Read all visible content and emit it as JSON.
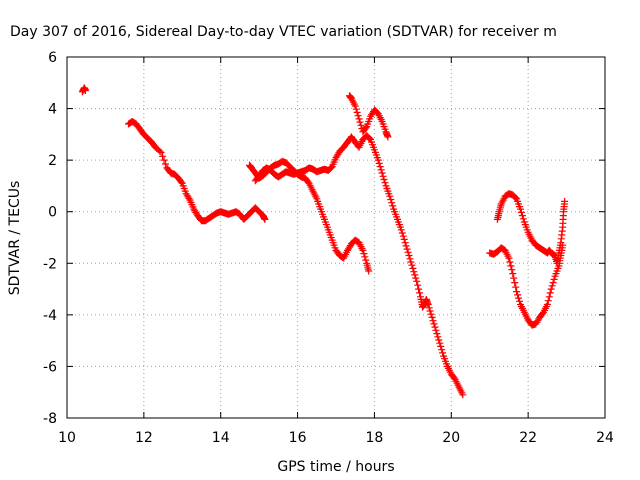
{
  "chart_data": {
    "type": "scatter",
    "title": "Day 307 of 2016, Sidereal Day-to-day VTEC variation (SDTVAR) for receiver m",
    "xlabel": "GPS time / hours",
    "ylabel": "SDTVAR / TECUs",
    "xlim": [
      10,
      24
    ],
    "ylim": [
      -8,
      6
    ],
    "xticks": [
      10,
      12,
      14,
      16,
      18,
      20,
      22,
      24
    ],
    "yticks": [
      -8,
      -6,
      -4,
      -2,
      0,
      2,
      4,
      6
    ],
    "grid": true,
    "marker": "plus",
    "color": "#ff0000",
    "series": [
      {
        "segments": [
          [
            [
              10.4,
              4.65
            ],
            [
              10.45,
              4.8
            ],
            [
              10.48,
              4.7
            ]
          ],
          [
            [
              11.6,
              3.4
            ],
            [
              11.7,
              3.5
            ],
            [
              11.8,
              3.4
            ],
            [
              11.9,
              3.2
            ],
            [
              12.0,
              3.0
            ],
            [
              12.1,
              2.85
            ],
            [
              12.2,
              2.7
            ],
            [
              12.3,
              2.5
            ],
            [
              12.45,
              2.3
            ],
            [
              12.6,
              1.7
            ],
            [
              12.7,
              1.5
            ],
            [
              12.8,
              1.45
            ],
            [
              12.9,
              1.3
            ],
            [
              13.0,
              1.1
            ],
            [
              13.1,
              0.7
            ],
            [
              13.2,
              0.45
            ],
            [
              13.3,
              0.1
            ],
            [
              13.4,
              -0.15
            ],
            [
              13.5,
              -0.35
            ],
            [
              13.6,
              -0.35
            ],
            [
              13.7,
              -0.25
            ],
            [
              13.8,
              -0.15
            ],
            [
              13.9,
              -0.05
            ],
            [
              14.0,
              0.0
            ],
            [
              14.1,
              -0.05
            ],
            [
              14.2,
              -0.1
            ],
            [
              14.3,
              -0.05
            ],
            [
              14.4,
              0.0
            ],
            [
              14.5,
              -0.1
            ],
            [
              14.6,
              -0.3
            ],
            [
              14.7,
              -0.15
            ],
            [
              14.8,
              0.0
            ],
            [
              14.9,
              0.15
            ],
            [
              15.0,
              0.0
            ],
            [
              15.1,
              -0.15
            ],
            [
              15.15,
              -0.3
            ]
          ],
          [
            [
              14.75,
              1.8
            ],
            [
              14.8,
              1.7
            ],
            [
              14.9,
              1.5
            ],
            [
              15.0,
              1.3
            ],
            [
              15.1,
              1.4
            ],
            [
              15.2,
              1.55
            ],
            [
              15.3,
              1.7
            ],
            [
              15.4,
              1.8
            ],
            [
              15.5,
              1.85
            ],
            [
              15.6,
              1.95
            ],
            [
              15.7,
              1.9
            ],
            [
              15.8,
              1.75
            ],
            [
              15.9,
              1.6
            ],
            [
              16.0,
              1.45
            ],
            [
              16.1,
              1.35
            ],
            [
              16.2,
              1.3
            ],
            [
              16.3,
              1.1
            ],
            [
              16.4,
              0.8
            ],
            [
              16.5,
              0.5
            ],
            [
              16.6,
              0.1
            ],
            [
              16.7,
              -0.3
            ],
            [
              16.8,
              -0.7
            ],
            [
              16.9,
              -1.1
            ],
            [
              17.0,
              -1.5
            ],
            [
              17.1,
              -1.7
            ],
            [
              17.2,
              -1.8
            ],
            [
              17.3,
              -1.5
            ],
            [
              17.4,
              -1.25
            ],
            [
              17.5,
              -1.1
            ],
            [
              17.6,
              -1.2
            ],
            [
              17.7,
              -1.5
            ],
            [
              17.8,
              -2.0
            ],
            [
              17.85,
              -2.3
            ]
          ],
          [
            [
              14.9,
              1.2
            ],
            [
              15.0,
              1.4
            ],
            [
              15.1,
              1.6
            ],
            [
              15.2,
              1.7
            ],
            [
              15.3,
              1.6
            ],
            [
              15.4,
              1.45
            ],
            [
              15.5,
              1.35
            ],
            [
              15.6,
              1.45
            ],
            [
              15.7,
              1.55
            ],
            [
              15.8,
              1.5
            ],
            [
              15.9,
              1.45
            ],
            [
              16.0,
              1.5
            ],
            [
              16.1,
              1.55
            ],
            [
              16.2,
              1.6
            ],
            [
              16.3,
              1.7
            ],
            [
              16.4,
              1.65
            ],
            [
              16.5,
              1.55
            ],
            [
              16.6,
              1.6
            ],
            [
              16.7,
              1.65
            ],
            [
              16.8,
              1.6
            ],
            [
              16.9,
              1.75
            ],
            [
              17.0,
              2.1
            ],
            [
              17.1,
              2.35
            ],
            [
              17.2,
              2.5
            ],
            [
              17.3,
              2.7
            ],
            [
              17.4,
              2.9
            ],
            [
              17.5,
              2.7
            ],
            [
              17.6,
              2.5
            ],
            [
              17.7,
              2.8
            ],
            [
              17.8,
              2.95
            ],
            [
              17.9,
              2.8
            ],
            [
              18.0,
              2.4
            ],
            [
              18.1,
              2.0
            ],
            [
              18.2,
              1.5
            ],
            [
              18.3,
              1.0
            ],
            [
              18.4,
              0.6
            ],
            [
              18.5,
              0.1
            ],
            [
              18.6,
              -0.3
            ],
            [
              18.7,
              -0.7
            ],
            [
              18.8,
              -1.2
            ],
            [
              18.9,
              -1.7
            ],
            [
              19.0,
              -2.2
            ],
            [
              19.1,
              -2.7
            ],
            [
              19.2,
              -3.3
            ],
            [
              19.25,
              -3.7
            ],
            [
              19.3,
              -3.6
            ],
            [
              19.35,
              -3.4
            ],
            [
              19.4,
              -3.6
            ],
            [
              19.5,
              -4.1
            ],
            [
              19.6,
              -4.6
            ],
            [
              19.7,
              -5.1
            ],
            [
              19.8,
              -5.6
            ],
            [
              19.9,
              -6.0
            ],
            [
              20.0,
              -6.3
            ],
            [
              20.1,
              -6.5
            ],
            [
              20.2,
              -6.8
            ],
            [
              20.3,
              -7.1
            ]
          ],
          [
            [
              17.35,
              4.5
            ],
            [
              17.4,
              4.4
            ],
            [
              17.5,
              4.1
            ],
            [
              17.6,
              3.6
            ],
            [
              17.7,
              3.1
            ],
            [
              17.8,
              3.3
            ],
            [
              17.9,
              3.7
            ],
            [
              18.0,
              3.95
            ],
            [
              18.1,
              3.8
            ],
            [
              18.2,
              3.5
            ],
            [
              18.3,
              3.1
            ],
            [
              18.35,
              2.9
            ]
          ],
          [
            [
              21.0,
              -1.6
            ],
            [
              21.1,
              -1.65
            ],
            [
              21.2,
              -1.55
            ],
            [
              21.3,
              -1.4
            ],
            [
              21.4,
              -1.5
            ],
            [
              21.5,
              -1.8
            ],
            [
              21.6,
              -2.4
            ],
            [
              21.7,
              -3.1
            ],
            [
              21.8,
              -3.6
            ],
            [
              21.9,
              -3.9
            ],
            [
              22.0,
              -4.2
            ],
            [
              22.1,
              -4.4
            ],
            [
              22.2,
              -4.35
            ],
            [
              22.3,
              -4.1
            ],
            [
              22.4,
              -3.9
            ],
            [
              22.5,
              -3.6
            ],
            [
              22.6,
              -3.0
            ],
            [
              22.7,
              -2.5
            ],
            [
              22.8,
              -2.1
            ],
            [
              22.85,
              -1.7
            ],
            [
              22.9,
              -1.3
            ]
          ],
          [
            [
              21.2,
              -0.3
            ],
            [
              21.25,
              0.0
            ],
            [
              21.3,
              0.3
            ],
            [
              21.4,
              0.6
            ],
            [
              21.5,
              0.7
            ],
            [
              21.6,
              0.65
            ],
            [
              21.7,
              0.5
            ],
            [
              21.8,
              0.1
            ],
            [
              21.9,
              -0.4
            ],
            [
              22.0,
              -0.8
            ],
            [
              22.1,
              -1.1
            ],
            [
              22.2,
              -1.3
            ],
            [
              22.3,
              -1.4
            ],
            [
              22.4,
              -1.5
            ],
            [
              22.5,
              -1.6
            ],
            [
              22.55,
              -1.5
            ],
            [
              22.6,
              -1.6
            ],
            [
              22.7,
              -1.7
            ],
            [
              22.75,
              -2.0
            ],
            [
              22.8,
              -1.6
            ],
            [
              22.85,
              -1.2
            ],
            [
              22.9,
              -0.6
            ],
            [
              22.92,
              0.0
            ],
            [
              22.95,
              0.4
            ]
          ]
        ]
      }
    ]
  }
}
